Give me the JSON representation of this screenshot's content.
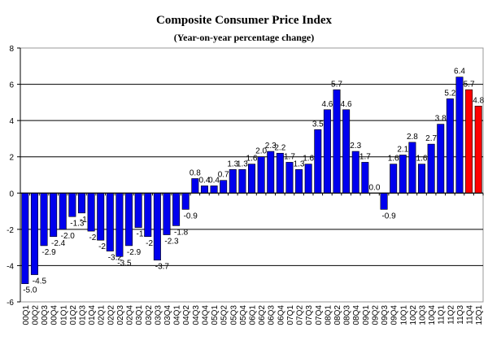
{
  "chart_data": {
    "type": "bar",
    "title": "Composite Consumer Price Index",
    "subtitle": "(Year-on-year percentage change)",
    "xlabel": "",
    "ylabel": "",
    "ylim": [
      -6,
      8
    ],
    "yticks": [
      -6,
      -4,
      -2,
      0,
      2,
      4,
      6,
      8
    ],
    "grid": true,
    "legend": "none",
    "categories": [
      "00Q1",
      "00Q2",
      "00Q3",
      "00Q4",
      "01Q1",
      "01Q2",
      "01Q3",
      "01Q4",
      "02Q1",
      "02Q2",
      "02Q3",
      "02Q4",
      "03Q1",
      "03Q2",
      "03Q3",
      "03Q4",
      "04Q1",
      "04Q2",
      "04Q3",
      "04Q4",
      "05Q1",
      "05Q2",
      "05Q3",
      "05Q4",
      "06Q1",
      "06Q2",
      "06Q3",
      "06Q4",
      "07Q1",
      "07Q2",
      "07Q3",
      "07Q4",
      "08Q1",
      "08Q2",
      "08Q3",
      "08Q4",
      "09Q1",
      "09Q2",
      "09Q3",
      "09Q4",
      "10Q1",
      "10Q2",
      "10Q3",
      "10Q4",
      "11Q1",
      "11Q2",
      "11Q3",
      "11Q4",
      "12Q1"
    ],
    "values": [
      -5.0,
      -4.5,
      -2.9,
      -2.4,
      -2.0,
      -1.3,
      -1.1,
      -2.1,
      -2.6,
      -3.2,
      -3.5,
      -2.9,
      -1.9,
      -2.4,
      -3.7,
      -2.3,
      -1.8,
      -0.9,
      0.8,
      0.4,
      0.4,
      0.7,
      1.3,
      1.3,
      1.6,
      2.0,
      2.3,
      2.2,
      1.7,
      1.3,
      1.6,
      3.5,
      4.6,
      5.7,
      4.6,
      2.3,
      1.7,
      0.0,
      -0.9,
      1.6,
      2.1,
      2.8,
      1.6,
      2.7,
      3.8,
      5.2,
      6.4,
      5.7,
      4.8
    ],
    "highlighted_categories": [
      "11Q4",
      "12Q1"
    ],
    "colors": {
      "bar": "#0000ee",
      "highlight": "#ff0000",
      "grid": "#000000"
    }
  }
}
